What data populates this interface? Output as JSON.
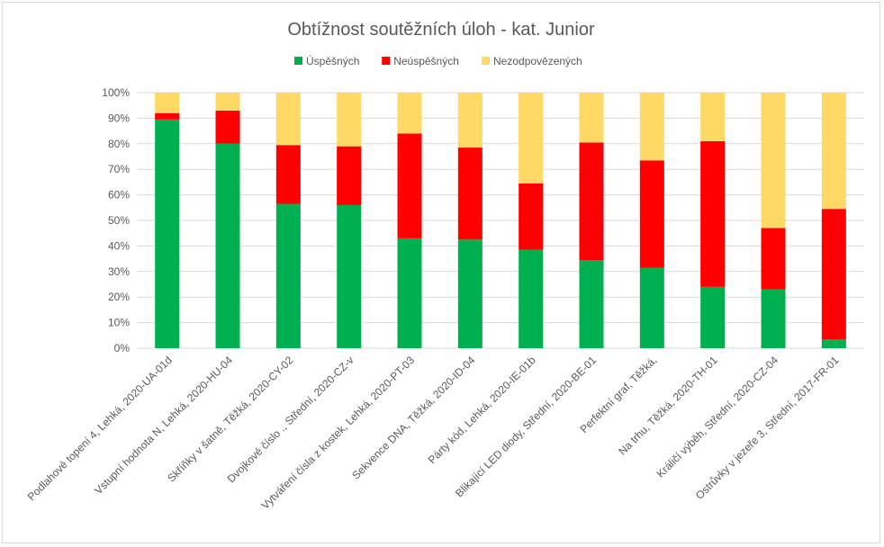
{
  "chart_data": {
    "type": "bar",
    "stacked": true,
    "percent_stacked": true,
    "title": "Obtížnost soutěžních úloh - kat. Junior",
    "legend_position": "top",
    "grid": true,
    "ylim": [
      0,
      100
    ],
    "yticks": [
      "0%",
      "10%",
      "20%",
      "30%",
      "40%",
      "50%",
      "60%",
      "70%",
      "80%",
      "90%",
      "100%"
    ],
    "categories": [
      "Podlahové topení 4, Lehká, 2020-UA-01d",
      "Vstupní hodnota N, Lehká, 2020-HU-04",
      "Skříňky v šatně, Těžká, 2020-CY-02",
      "Dvojkové číslo ., Střední, 2020-CZ-v",
      "Vytváření čísla z kostek, Lehká, 2020-PT-03",
      "Sekvence DNA, Těžká, 2020-ID-04",
      "Párty kód, Lehká, 2020-IE-01b",
      "Blikající LED diody, Střední, 2020-BE-01",
      "Perfektní graf, Těžká,",
      "Na trhu, Těžká, 2020-TH-01",
      "Králičí výběh, Střední, 2020-CZ-04",
      "Ostrůvky v jezeře 3, Střední, 2017-FR-01"
    ],
    "series": [
      {
        "name": "Úspěšných",
        "color": "#00b050",
        "values": [
          89.5,
          80,
          56.5,
          56,
          43,
          42.5,
          38.5,
          34.5,
          31.5,
          24,
          23,
          3.5
        ]
      },
      {
        "name": "Neúspěšných",
        "color": "#ff0000",
        "values": [
          2.5,
          13,
          23,
          23,
          41,
          36,
          26,
          46,
          42,
          57,
          24,
          51
        ]
      },
      {
        "name": "Nezodpovězených",
        "color": "#ffd966",
        "values": [
          8,
          7,
          20.5,
          21,
          16,
          21.5,
          35.5,
          19.5,
          26.5,
          19,
          53,
          45.5
        ]
      }
    ]
  }
}
